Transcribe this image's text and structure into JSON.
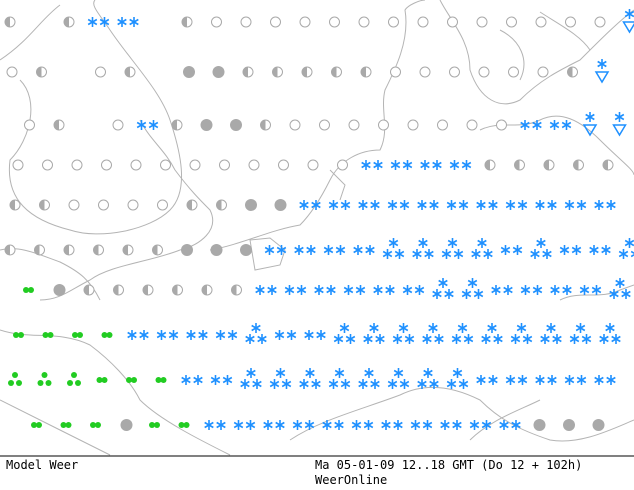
{
  "footer": {
    "left": "Model Weer",
    "right": "Ma 05-01-09 12..18 GMT (Do 12 + 102h)",
    "credit": "WeerOnline"
  }
}
